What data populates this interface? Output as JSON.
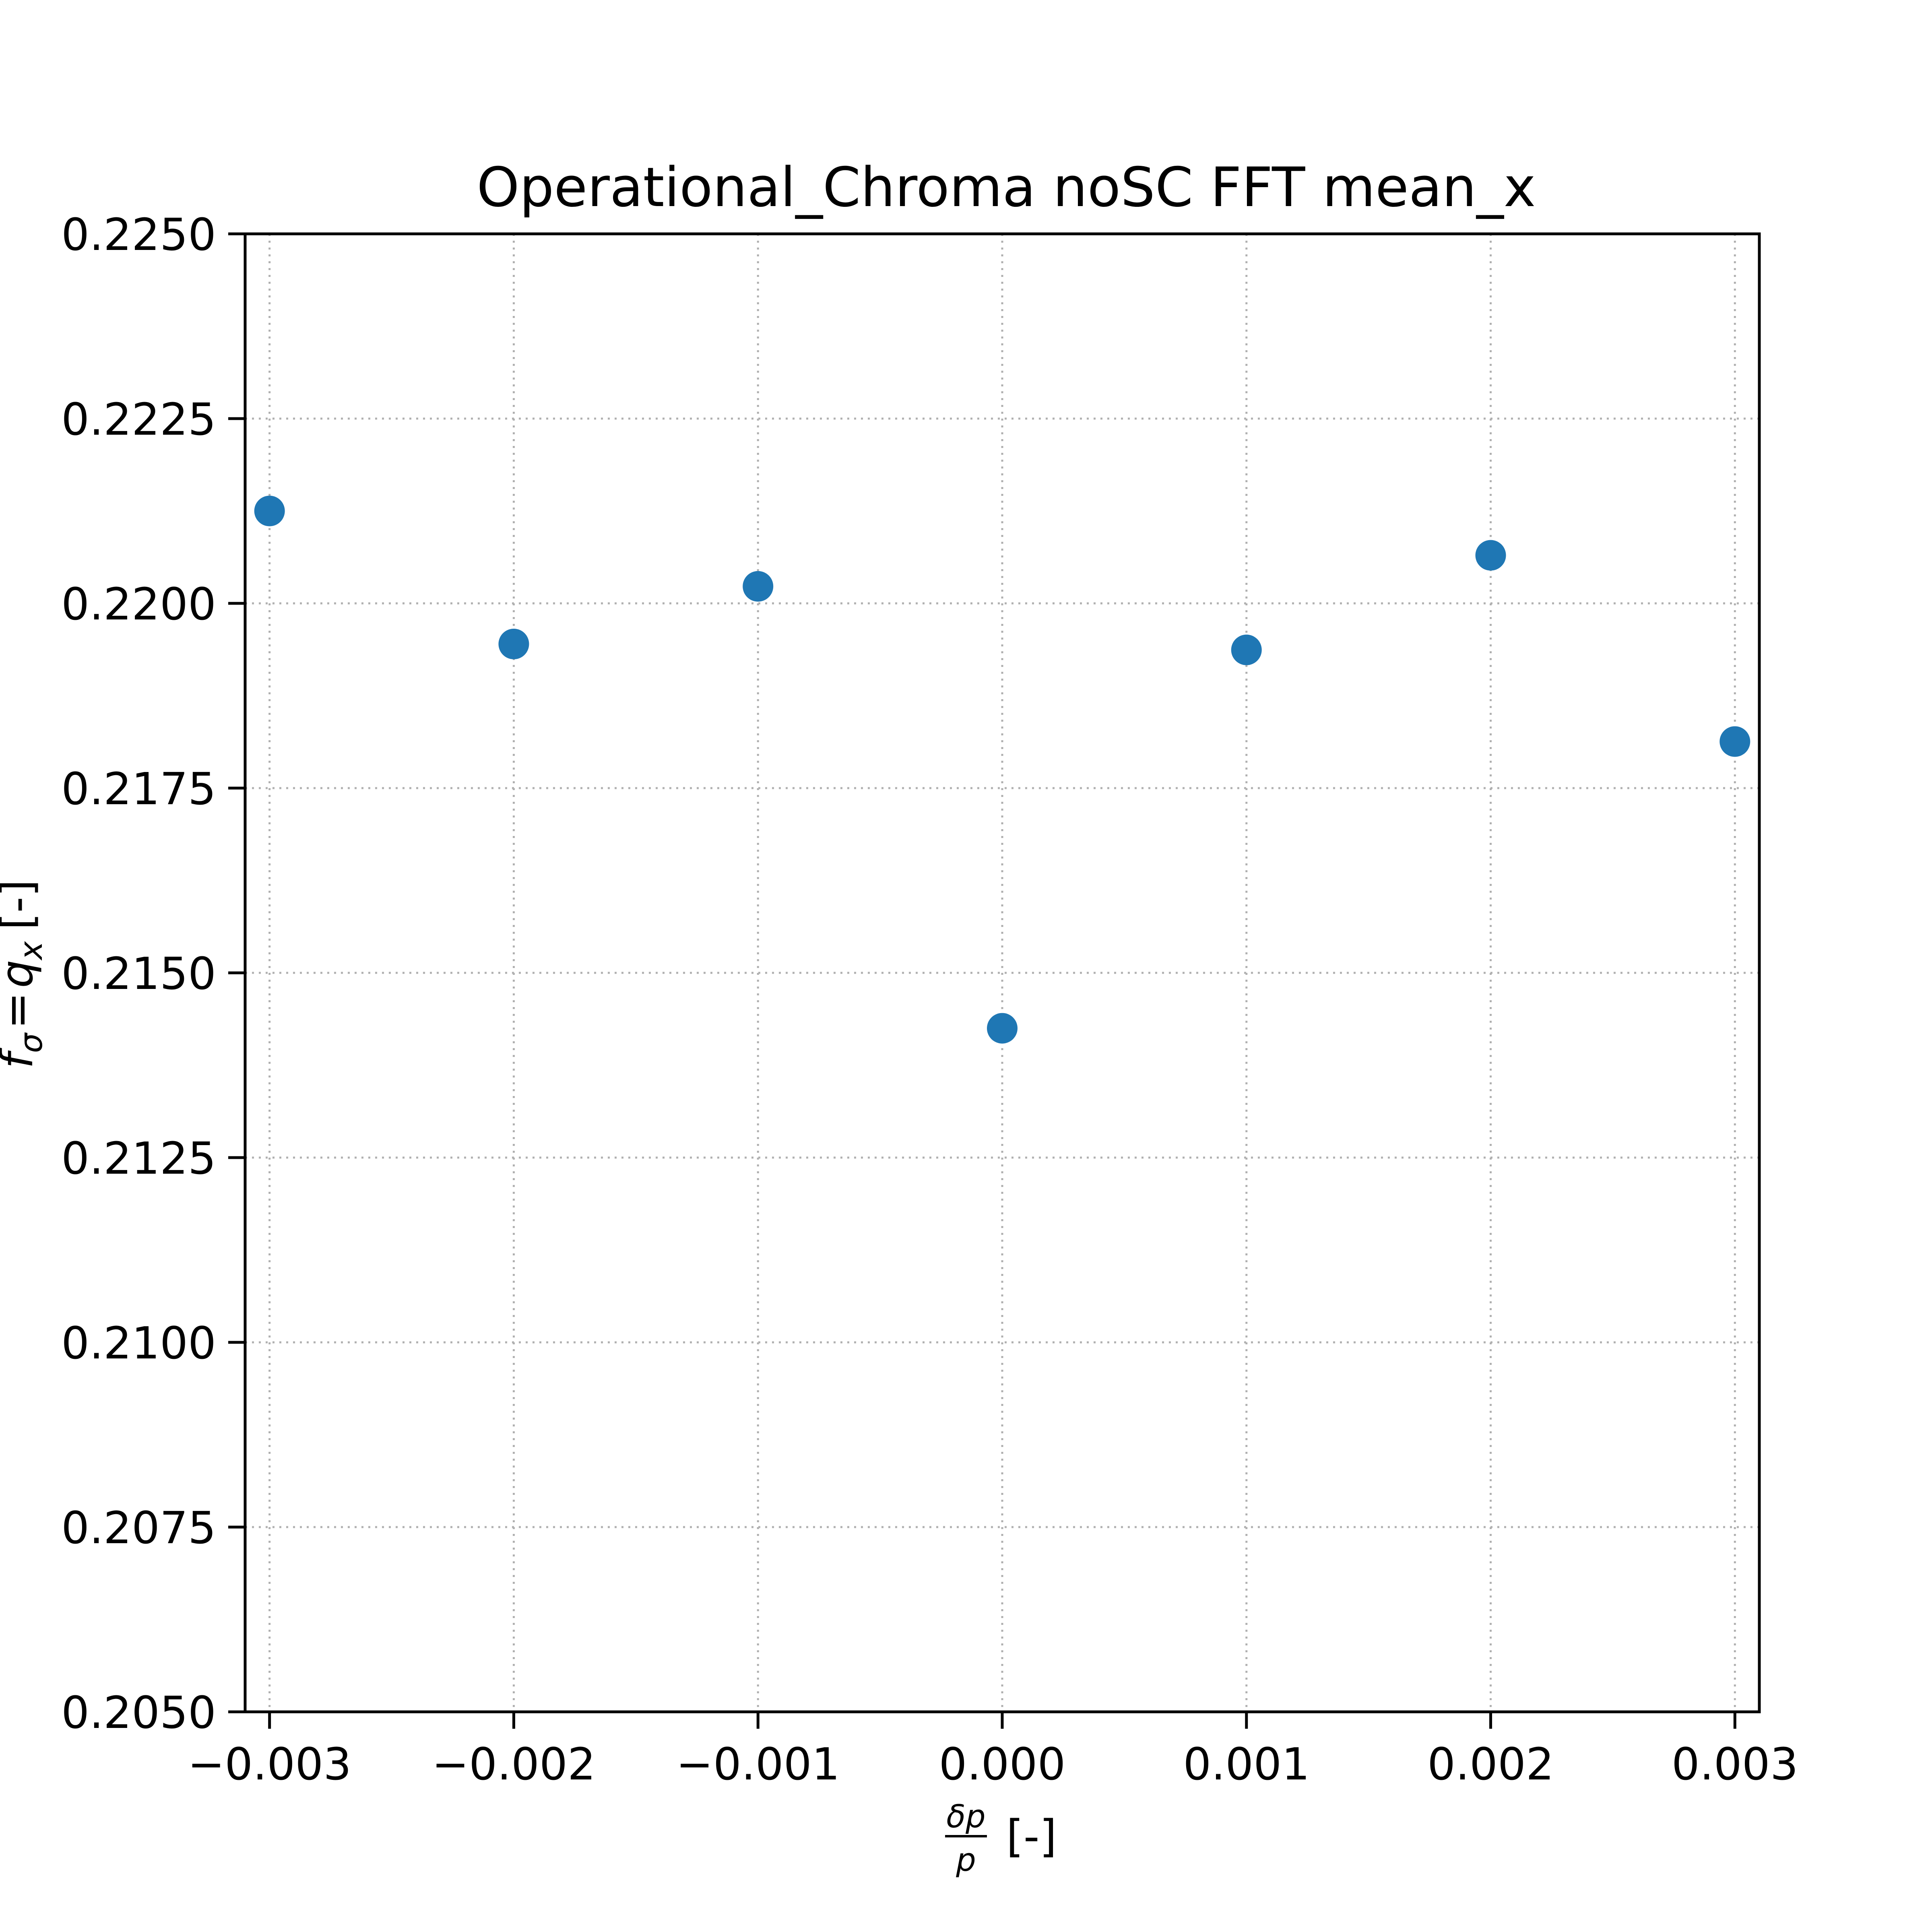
{
  "chart_data": {
    "type": "scatter",
    "title": "Operational_Chroma noSC FFT mean_x",
    "xlabel": {
      "numerator": "δp",
      "denominator": "p",
      "suffix": "[-]"
    },
    "ylabel": {
      "lhs": "f",
      "lhs_sub": "σ",
      "eq": "=",
      "rhs": "q",
      "rhs_sub": "x",
      "suffix": "[-]"
    },
    "xlim": [
      -0.0031,
      0.0031
    ],
    "ylim": [
      0.205,
      0.225
    ],
    "x_ticks": [
      -0.003,
      -0.002,
      -0.001,
      0.0,
      0.001,
      0.002,
      0.003
    ],
    "x_tick_labels": [
      "−0.003",
      "−0.002",
      "−0.001",
      "0.000",
      "0.001",
      "0.002",
      "0.003"
    ],
    "y_ticks": [
      0.205,
      0.2075,
      0.21,
      0.2125,
      0.215,
      0.2175,
      0.22,
      0.2225,
      0.225
    ],
    "y_tick_labels": [
      "0.2050",
      "0.2075",
      "0.2100",
      "0.2125",
      "0.2150",
      "0.2175",
      "0.2200",
      "0.2225",
      "0.2250"
    ],
    "grid": true,
    "color": "#1f77b4",
    "points": [
      {
        "x": -0.003,
        "y": 0.22125
      },
      {
        "x": -0.002,
        "y": 0.21945
      },
      {
        "x": -0.001,
        "y": 0.22023
      },
      {
        "x": 0.0,
        "y": 0.21425
      },
      {
        "x": 0.001,
        "y": 0.21937
      },
      {
        "x": 0.002,
        "y": 0.22065
      },
      {
        "x": 0.003,
        "y": 0.21813
      }
    ]
  }
}
